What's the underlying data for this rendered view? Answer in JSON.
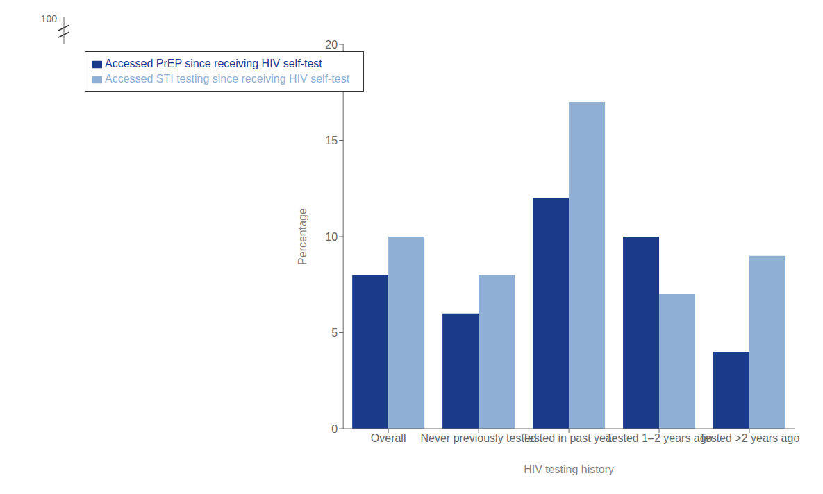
{
  "chart_data": {
    "type": "bar",
    "xlabel": "HIV testing history",
    "ylabel": "Percentage",
    "categories": [
      "Overall",
      "Never previously tested",
      "Tested in past year",
      "Tested 1–2 years ago",
      "Tested >2 years ago"
    ],
    "series": [
      {
        "name": "Accessed PrEP since receiving HIV self-test",
        "color": "#1a3a8a",
        "values": [
          8,
          6,
          12,
          10,
          4
        ]
      },
      {
        "name": "Accessed STI testing since receiving HIV self-test",
        "color": "#8fafd4",
        "values": [
          10,
          8,
          17,
          7,
          9
        ]
      }
    ],
    "ylim": [
      0,
      20
    ],
    "yticks": [
      0,
      5,
      10,
      15,
      20
    ],
    "grid": false,
    "legend": "upper left",
    "annotations": [
      "100"
    ]
  }
}
